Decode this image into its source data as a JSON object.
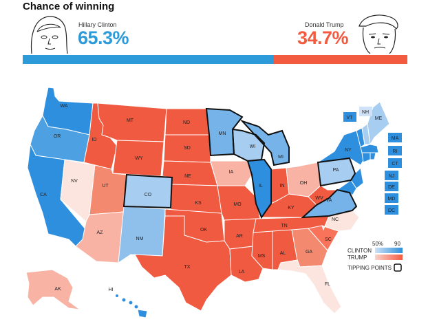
{
  "title": "Chance of winning",
  "clinton": {
    "name": "Hillary Clinton",
    "pct": "65.3%",
    "share": 0.653,
    "color": "#2d9ad9"
  },
  "trump": {
    "name": "Donald Trump",
    "pct": "34.7%",
    "share": 0.347,
    "color": "#f35b40"
  },
  "legend": {
    "clinton_label": "CLINTON",
    "trump_label": "TRUMP",
    "low": "50%",
    "high": "90",
    "tipping_points": "TIPPING POINTS"
  },
  "states": {
    "WA": "WA",
    "OR": "OR",
    "CA": "CA",
    "NV": "NV",
    "ID": "ID",
    "MT": "MT",
    "WY": "WY",
    "UT": "UT",
    "AZ": "AZ",
    "CO": "CO",
    "NM": "NM",
    "ND": "ND",
    "SD": "SD",
    "NE": "NE",
    "KS": "KS",
    "OK": "OK",
    "TX": "TX",
    "MN": "MN",
    "IA": "IA",
    "MO": "MO",
    "AR": "AR",
    "LA": "LA",
    "WI": "WI",
    "IL": "IL",
    "MI": "MI",
    "IN": "IN",
    "OH": "OH",
    "KY": "KY",
    "TN": "TN",
    "MS": "MS",
    "AL": "AL",
    "GA": "GA",
    "FL": "FL",
    "SC": "SC",
    "NC": "NC",
    "VA": "VA",
    "WV": "WV",
    "PA": "PA",
    "NY": "NY",
    "ME": "ME",
    "VT": "VT",
    "NH": "NH",
    "MA": "MA",
    "RI": "RI",
    "CT": "CT",
    "NJ": "NJ",
    "DE": "DE",
    "MD": "MD",
    "DC": "DC",
    "AK": "AK",
    "HI": "HI"
  }
}
